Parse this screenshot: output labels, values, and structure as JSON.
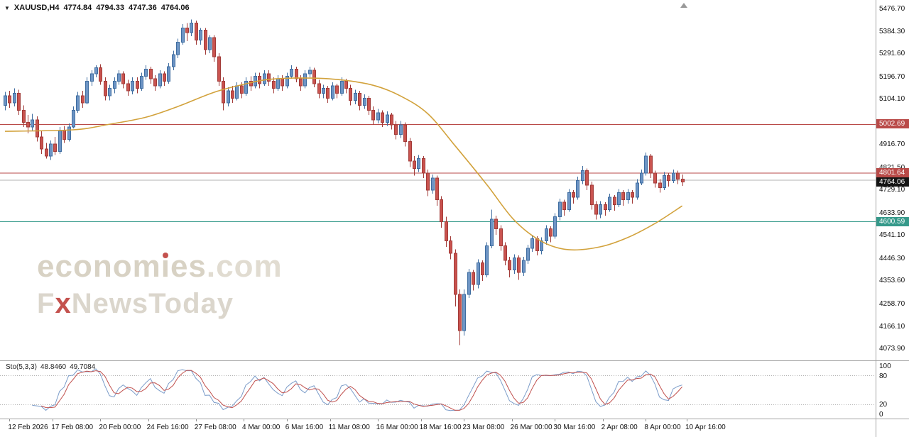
{
  "header": {
    "symbol_period": "XAUUSD,H4",
    "open": "4774.84",
    "high": "4794.33",
    "low": "4747.36",
    "close": "4764.06"
  },
  "icons": {
    "symbol_dropdown": "▼",
    "chart_shift": "triangle-up"
  },
  "watermark": {
    "brand_a": "econom",
    "brand_i": "i",
    "brand_b": "es",
    "domain": ".com",
    "fx_f": "F",
    "fx_x": "x",
    "fx_rest": "NewsToday"
  },
  "sto": {
    "title": "Sto(5,3,3)",
    "value_main": "48.8460",
    "value_signal": "49.7084",
    "levels": [
      100,
      80,
      20,
      0
    ],
    "level_lines": [
      80,
      20
    ]
  },
  "colors": {
    "candle_up": "#6d94c4",
    "candle_up_border": "#3f6da0",
    "candle_down": "#c9534f",
    "candle_down_border": "#a23b38",
    "ma": "#d2a23c",
    "sto_main": "#7b9cc9",
    "sto_signal": "#c0504d",
    "sto_level": "#b0b0b0",
    "box_red": "#b94a48",
    "box_green": "#35998a",
    "box_black": "#141414",
    "hline_red": "#b94a48",
    "hline_green": "#35998a",
    "hline_gray": "#b3b3b3",
    "axis_text": "#111111",
    "separator": "#a3a3a3",
    "watermark_primary": "#d8d2c4",
    "watermark_accent": "#c4524e"
  },
  "price_labels": [
    {
      "text": "5002.69",
      "value": 5002.69,
      "style": "red",
      "name": "resistance-price-label-1"
    },
    {
      "text": "4801.64",
      "value": 4801.64,
      "style": "red",
      "name": "resistance-price-label-2"
    },
    {
      "text": "4764.06",
      "value": 4764.06,
      "style": "black",
      "name": "bid-price-label"
    },
    {
      "text": "4600.59",
      "value": 4600.59,
      "style": "green",
      "name": "support-price-label"
    }
  ],
  "chart_data": {
    "type": "candlestick",
    "symbol": "XAUUSD",
    "timeframe": "H4",
    "title": "XAUUSD,H4",
    "last_ohlc": {
      "open": 4774.84,
      "high": 4794.33,
      "low": 4747.36,
      "close": 4764.06
    },
    "ylim": [
      4027,
      5515
    ],
    "grid": false,
    "legend_position": "none",
    "layout": {
      "x_origin": 7,
      "candle_step": 6.4,
      "body_width": 4.2
    },
    "hlines": [
      {
        "value": 5002.69,
        "color": "#b94a48",
        "label": "5002.69"
      },
      {
        "value": 4801.64,
        "color": "#b94a48",
        "label": "4801.64"
      },
      {
        "value": 4772.0,
        "color": "#b3b3b3",
        "label": ""
      },
      {
        "value": 4600.59,
        "color": "#35998a",
        "label": "4600.59"
      }
    ],
    "price_ticks": [
      {
        "text": "5476.70",
        "value": 5476.7
      },
      {
        "text": "5384.30",
        "value": 5384.3
      },
      {
        "text": "5291.60",
        "value": 5291.6
      },
      {
        "text": "5196.70",
        "value": 5196.7
      },
      {
        "text": "5104.10",
        "value": 5104.1
      },
      {
        "text": "4916.70",
        "value": 4916.7
      },
      {
        "text": "4821.50",
        "value": 4821.5
      },
      {
        "text": "4729.10",
        "value": 4729.1
      },
      {
        "text": "4633.90",
        "value": 4633.9
      },
      {
        "text": "4541.10",
        "value": 4541.1
      },
      {
        "text": "4446.30",
        "value": 4446.3
      },
      {
        "text": "4353.60",
        "value": 4353.6
      },
      {
        "text": "4258.70",
        "value": 4258.7
      },
      {
        "text": "4166.10",
        "value": 4166.1
      },
      {
        "text": "4073.90",
        "value": 4073.9
      }
    ],
    "time_ticks": [
      {
        "label": "12 Feb 2026",
        "i": 1
      },
      {
        "label": "17 Feb 08:00",
        "i": 10.5
      },
      {
        "label": "20 Feb 00:00",
        "i": 21
      },
      {
        "label": "24 Feb 16:00",
        "i": 31.5
      },
      {
        "label": "27 Feb 08:00",
        "i": 42
      },
      {
        "label": "4 Mar 00:00",
        "i": 52.5
      },
      {
        "label": "6 Mar 16:00",
        "i": 62
      },
      {
        "label": "11 Mar 08:00",
        "i": 71.5
      },
      {
        "label": "16 Mar 00:00",
        "i": 82
      },
      {
        "label": "18 Mar 16:00",
        "i": 91.5
      },
      {
        "label": "23 Mar 08:00",
        "i": 101
      },
      {
        "label": "26 Mar 00:00",
        "i": 111.5
      },
      {
        "label": "30 Mar 16:00",
        "i": 121
      },
      {
        "label": "2 Apr 08:00",
        "i": 131.5
      },
      {
        "label": "8 Apr 00:00",
        "i": 141
      },
      {
        "label": "10 Apr 16:00",
        "i": 150
      }
    ],
    "candles": [
      [
        5080,
        5135,
        5060,
        5120
      ],
      [
        5120,
        5140,
        5070,
        5090
      ],
      [
        5090,
        5150,
        5075,
        5130
      ],
      [
        5130,
        5145,
        5040,
        5060
      ],
      [
        5060,
        5080,
        4990,
        5010
      ],
      [
        5010,
        5040,
        4965,
        4990
      ],
      [
        4990,
        5045,
        4975,
        5020
      ],
      [
        5020,
        5035,
        4930,
        4950
      ],
      [
        4950,
        4975,
        4880,
        4900
      ],
      [
        4900,
        4925,
        4860,
        4870
      ],
      [
        4870,
        4935,
        4855,
        4920
      ],
      [
        4920,
        4950,
        4875,
        4890
      ],
      [
        4890,
        4990,
        4880,
        4975
      ],
      [
        4975,
        4995,
        4925,
        4940
      ],
      [
        4940,
        5005,
        4930,
        4990
      ],
      [
        4990,
        5075,
        4985,
        5060
      ],
      [
        5060,
        5135,
        5050,
        5120
      ],
      [
        5120,
        5140,
        5070,
        5090
      ],
      [
        5090,
        5195,
        5085,
        5180
      ],
      [
        5180,
        5225,
        5160,
        5210
      ],
      [
        5210,
        5245,
        5195,
        5235
      ],
      [
        5235,
        5250,
        5165,
        5180
      ],
      [
        5180,
        5195,
        5100,
        5120
      ],
      [
        5120,
        5165,
        5100,
        5150
      ],
      [
        5150,
        5195,
        5130,
        5180
      ],
      [
        5180,
        5225,
        5165,
        5210
      ],
      [
        5210,
        5220,
        5150,
        5170
      ],
      [
        5170,
        5185,
        5120,
        5140
      ],
      [
        5140,
        5195,
        5125,
        5180
      ],
      [
        5180,
        5195,
        5130,
        5150
      ],
      [
        5150,
        5215,
        5140,
        5200
      ],
      [
        5200,
        5245,
        5185,
        5230
      ],
      [
        5230,
        5240,
        5170,
        5190
      ],
      [
        5190,
        5205,
        5140,
        5160
      ],
      [
        5160,
        5225,
        5150,
        5210
      ],
      [
        5210,
        5220,
        5160,
        5180
      ],
      [
        5180,
        5255,
        5170,
        5240
      ],
      [
        5240,
        5305,
        5225,
        5290
      ],
      [
        5290,
        5355,
        5275,
        5340
      ],
      [
        5340,
        5415,
        5330,
        5400
      ],
      [
        5400,
        5420,
        5345,
        5380
      ],
      [
        5380,
        5435,
        5365,
        5420
      ],
      [
        5420,
        5430,
        5330,
        5350
      ],
      [
        5350,
        5400,
        5330,
        5390
      ],
      [
        5390,
        5400,
        5290,
        5310
      ],
      [
        5310,
        5370,
        5295,
        5360
      ],
      [
        5360,
        5370,
        5260,
        5280
      ],
      [
        5280,
        5295,
        5160,
        5180
      ],
      [
        5180,
        5195,
        5060,
        5090
      ],
      [
        5090,
        5155,
        5075,
        5140
      ],
      [
        5140,
        5160,
        5090,
        5110
      ],
      [
        5110,
        5175,
        5100,
        5160
      ],
      [
        5160,
        5175,
        5110,
        5130
      ],
      [
        5130,
        5195,
        5120,
        5180
      ],
      [
        5180,
        5200,
        5140,
        5160
      ],
      [
        5160,
        5215,
        5150,
        5200
      ],
      [
        5200,
        5215,
        5150,
        5170
      ],
      [
        5170,
        5225,
        5160,
        5210
      ],
      [
        5210,
        5225,
        5160,
        5180
      ],
      [
        5180,
        5195,
        5130,
        5150
      ],
      [
        5150,
        5205,
        5140,
        5190
      ],
      [
        5190,
        5205,
        5140,
        5160
      ],
      [
        5160,
        5215,
        5150,
        5200
      ],
      [
        5200,
        5245,
        5190,
        5230
      ],
      [
        5230,
        5240,
        5175,
        5190
      ],
      [
        5190,
        5205,
        5140,
        5160
      ],
      [
        5160,
        5225,
        5150,
        5210
      ],
      [
        5210,
        5240,
        5195,
        5225
      ],
      [
        5225,
        5235,
        5155,
        5170
      ],
      [
        5170,
        5185,
        5110,
        5130
      ],
      [
        5130,
        5165,
        5110,
        5150
      ],
      [
        5150,
        5160,
        5090,
        5110
      ],
      [
        5110,
        5175,
        5100,
        5160
      ],
      [
        5160,
        5170,
        5110,
        5130
      ],
      [
        5130,
        5195,
        5120,
        5180
      ],
      [
        5180,
        5190,
        5130,
        5150
      ],
      [
        5150,
        5165,
        5080,
        5100
      ],
      [
        5100,
        5145,
        5085,
        5130
      ],
      [
        5130,
        5140,
        5060,
        5080
      ],
      [
        5080,
        5125,
        5065,
        5110
      ],
      [
        5110,
        5120,
        5040,
        5060
      ],
      [
        5060,
        5075,
        5000,
        5020
      ],
      [
        5020,
        5065,
        5005,
        5050
      ],
      [
        5050,
        5060,
        4990,
        5010
      ],
      [
        5010,
        5055,
        4995,
        5040
      ],
      [
        5040,
        5050,
        4980,
        5000
      ],
      [
        5000,
        5015,
        4940,
        4960
      ],
      [
        4960,
        5015,
        4945,
        5000
      ],
      [
        5000,
        5010,
        4910,
        4930
      ],
      [
        4930,
        4945,
        4825,
        4850
      ],
      [
        4850,
        4870,
        4790,
        4820
      ],
      [
        4820,
        4875,
        4805,
        4860
      ],
      [
        4860,
        4870,
        4780,
        4800
      ],
      [
        4800,
        4815,
        4705,
        4730
      ],
      [
        4730,
        4795,
        4715,
        4780
      ],
      [
        4780,
        4790,
        4665,
        4690
      ],
      [
        4690,
        4705,
        4575,
        4600
      ],
      [
        4600,
        4620,
        4495,
        4520
      ],
      [
        4520,
        4540,
        4445,
        4470
      ],
      [
        4470,
        4485,
        4250,
        4300
      ],
      [
        4300,
        4320,
        4090,
        4150
      ],
      [
        4150,
        4320,
        4130,
        4300
      ],
      [
        4300,
        4405,
        4285,
        4390
      ],
      [
        4390,
        4400,
        4315,
        4340
      ],
      [
        4340,
        4445,
        4325,
        4430
      ],
      [
        4430,
        4440,
        4355,
        4380
      ],
      [
        4380,
        4515,
        4370,
        4500
      ],
      [
        4500,
        4650,
        4490,
        4610
      ],
      [
        4610,
        4625,
        4545,
        4570
      ],
      [
        4570,
        4585,
        4480,
        4500
      ],
      [
        4500,
        4515,
        4420,
        4440
      ],
      [
        4440,
        4455,
        4370,
        4400
      ],
      [
        4400,
        4465,
        4385,
        4450
      ],
      [
        4450,
        4460,
        4360,
        4390
      ],
      [
        4390,
        4455,
        4375,
        4440
      ],
      [
        4440,
        4505,
        4425,
        4490
      ],
      [
        4490,
        4545,
        4475,
        4530
      ],
      [
        4530,
        4540,
        4460,
        4480
      ],
      [
        4480,
        4535,
        4465,
        4520
      ],
      [
        4520,
        4585,
        4505,
        4570
      ],
      [
        4570,
        4580,
        4515,
        4540
      ],
      [
        4540,
        4635,
        4530,
        4620
      ],
      [
        4620,
        4695,
        4605,
        4680
      ],
      [
        4680,
        4690,
        4625,
        4650
      ],
      [
        4650,
        4735,
        4640,
        4720
      ],
      [
        4720,
        4730,
        4675,
        4700
      ],
      [
        4700,
        4785,
        4690,
        4770
      ],
      [
        4770,
        4830,
        4755,
        4810
      ],
      [
        4810,
        4820,
        4730,
        4750
      ],
      [
        4750,
        4765,
        4650,
        4670
      ],
      [
        4670,
        4685,
        4608,
        4630
      ],
      [
        4630,
        4685,
        4615,
        4670
      ],
      [
        4670,
        4680,
        4625,
        4650
      ],
      [
        4650,
        4715,
        4640,
        4700
      ],
      [
        4700,
        4710,
        4645,
        4670
      ],
      [
        4670,
        4735,
        4660,
        4720
      ],
      [
        4720,
        4730,
        4665,
        4690
      ],
      [
        4690,
        4735,
        4675,
        4720
      ],
      [
        4720,
        4730,
        4675,
        4700
      ],
      [
        4700,
        4775,
        4690,
        4760
      ],
      [
        4760,
        4815,
        4750,
        4800
      ],
      [
        4800,
        4885,
        4790,
        4870
      ],
      [
        4870,
        4880,
        4780,
        4800
      ],
      [
        4800,
        4810,
        4740,
        4760
      ],
      [
        4760,
        4775,
        4720,
        4740
      ],
      [
        4740,
        4805,
        4730,
        4790
      ],
      [
        4790,
        4800,
        4745,
        4770
      ],
      [
        4770,
        4815,
        4760,
        4800
      ],
      [
        4800,
        4810,
        4755,
        4775
      ],
      [
        4774.84,
        4794.33,
        4747.36,
        4764.06
      ]
    ],
    "ma_points": [
      [
        0,
        4973
      ],
      [
        15,
        4979
      ],
      [
        23,
        5002
      ],
      [
        31,
        5031
      ],
      [
        38,
        5075
      ],
      [
        46,
        5134
      ],
      [
        53,
        5169
      ],
      [
        58,
        5187
      ],
      [
        65,
        5193
      ],
      [
        73,
        5187
      ],
      [
        81,
        5163
      ],
      [
        87,
        5119
      ],
      [
        93,
        5046
      ],
      [
        99,
        4914
      ],
      [
        106,
        4753
      ],
      [
        112,
        4607
      ],
      [
        118,
        4519
      ],
      [
        124,
        4484
      ],
      [
        131,
        4496
      ],
      [
        137,
        4534
      ],
      [
        143,
        4592
      ],
      [
        149,
        4665
      ]
    ],
    "stochastic": {
      "k_period": 5,
      "slowing": 3,
      "d_period": 3,
      "current_main": 48.846,
      "current_signal": 49.7084,
      "range": [
        0,
        100
      ]
    }
  }
}
